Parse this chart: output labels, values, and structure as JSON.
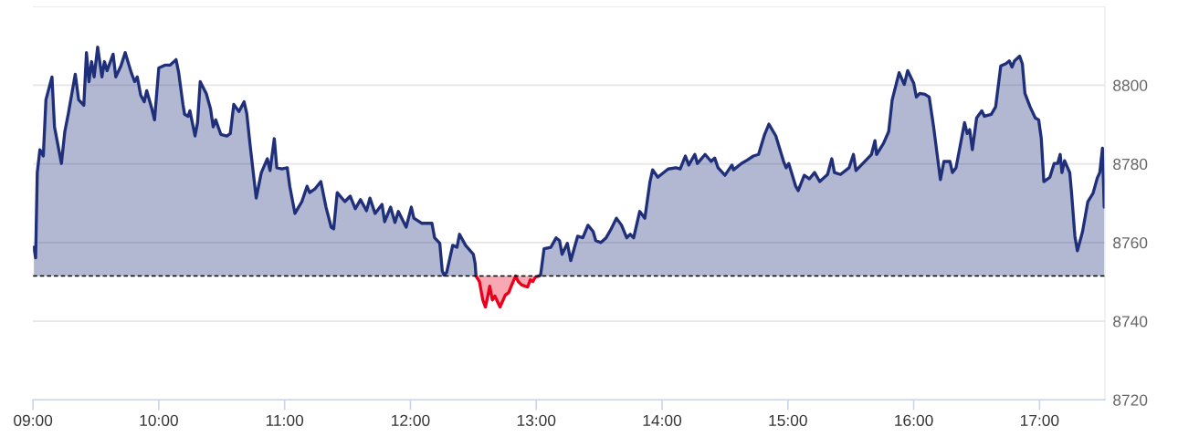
{
  "chart_data": {
    "type": "area",
    "xlim": [
      9,
      17.52
    ],
    "ylim": [
      8720,
      8820
    ],
    "xticks": [
      {
        "value": 9,
        "label": "09:00"
      },
      {
        "value": 10,
        "label": "10:00"
      },
      {
        "value": 11,
        "label": "11:00"
      },
      {
        "value": 12,
        "label": "12:00"
      },
      {
        "value": 13,
        "label": "13:00"
      },
      {
        "value": 14,
        "label": "14:00"
      },
      {
        "value": 15,
        "label": "15:00"
      },
      {
        "value": 16,
        "label": "16:00"
      },
      {
        "value": 17,
        "label": "17:00"
      }
    ],
    "yticks": [
      8720,
      8740,
      8760,
      8780,
      8800,
      {
        "value": 8820,
        "label": null
      }
    ],
    "grid": "y",
    "ref_lines": [
      {
        "axis": "y",
        "value": 8751.5,
        "color": "#000000",
        "line_style": "dashed"
      }
    ],
    "series": [
      {
        "color": "#1f2f7a",
        "x": [
          9.007,
          9.021,
          9.034,
          9.055,
          9.082,
          9.103,
          9.151,
          9.171,
          9.226,
          9.253,
          9.281,
          9.336,
          9.363,
          9.404,
          9.425,
          9.445,
          9.466,
          9.486,
          9.514,
          9.548,
          9.568,
          9.589,
          9.637,
          9.658,
          9.699,
          9.733,
          9.781,
          9.808,
          9.829,
          9.856,
          9.884,
          9.904,
          9.945,
          9.966,
          10.0,
          10.048,
          10.089,
          10.137,
          10.158,
          10.192,
          10.205,
          10.233,
          10.247,
          10.288,
          10.308,
          10.329,
          10.377,
          10.411,
          10.432,
          10.452,
          10.493,
          10.541,
          10.568,
          10.596,
          10.637,
          10.678,
          10.699,
          10.726,
          10.774,
          10.815,
          10.863,
          10.884,
          10.918,
          10.938,
          10.979,
          11.021,
          11.041,
          11.082,
          11.137,
          11.178,
          11.199,
          11.24,
          11.288,
          11.329,
          11.37,
          11.39,
          11.418,
          11.479,
          11.521,
          11.562,
          11.603,
          11.651,
          11.678,
          11.719,
          11.774,
          11.795,
          11.842,
          11.877,
          11.904,
          11.966,
          12.007,
          12.027,
          12.089,
          12.144,
          12.171,
          12.192,
          12.233,
          12.253,
          12.267,
          12.288,
          12.336,
          12.37,
          12.39,
          12.438,
          12.5,
          12.514,
          12.521
        ],
        "values": [
          8758.8,
          8756.1,
          8777.8,
          8783.6,
          8782.0,
          8796.3,
          8802.1,
          8789.4,
          8780.1,
          8788.2,
          8792.8,
          8802.8,
          8796.3,
          8794.9,
          8808.3,
          8800.9,
          8806.0,
          8802.1,
          8809.7,
          8802.1,
          8806.0,
          8803.7,
          8807.9,
          8802.1,
          8804.9,
          8808.3,
          8803.2,
          8800.9,
          8802.1,
          8797.5,
          8795.8,
          8798.6,
          8794.0,
          8791.2,
          8804.4,
          8805.1,
          8805.1,
          8806.5,
          8803.2,
          8795.1,
          8792.6,
          8792.1,
          8793.5,
          8787.1,
          8790.5,
          8800.9,
          8797.9,
          8794.0,
          8789.4,
          8791.2,
          8787.5,
          8787.1,
          8787.7,
          8795.1,
          8793.3,
          8795.8,
          8792.8,
          8784.7,
          8771.3,
          8777.8,
          8781.3,
          8778.3,
          8786.4,
          8779.0,
          8778.7,
          8779.0,
          8774.3,
          8767.4,
          8770.4,
          8774.3,
          8772.7,
          8773.6,
          8775.5,
          8769.0,
          8763.9,
          8763.5,
          8772.7,
          8770.4,
          8771.8,
          8768.6,
          8770.9,
          8768.1,
          8771.3,
          8767.4,
          8769.7,
          8765.3,
          8769.0,
          8765.1,
          8767.9,
          8763.9,
          8769.0,
          8766.2,
          8764.9,
          8764.9,
          8764.9,
          8761.2,
          8759.8,
          8752.8,
          8751.7,
          8752.4,
          8759.3,
          8758.8,
          8762.1,
          8759.3,
          8757.0,
          8754.7,
          8751.5
        ]
      },
      {
        "color": "#e8001c",
        "x": [
          12.521,
          12.527,
          12.548,
          12.575,
          12.596,
          12.616,
          12.63,
          12.651,
          12.671,
          12.712,
          12.753,
          12.781,
          12.801,
          12.836,
          12.856,
          12.884,
          12.932,
          12.952,
          12.973,
          12.993,
          13.021
        ],
        "values": [
          8751.5,
          8751.2,
          8750.1,
          8745.4,
          8743.6,
          8746.6,
          8748.9,
          8745.4,
          8746.4,
          8743.6,
          8746.6,
          8747.3,
          8748.9,
          8751.5,
          8750.1,
          8749.2,
          8748.7,
          8750.5,
          8750.1,
          8751.2,
          8751.5
        ]
      },
      {
        "color": "#1f2f7a",
        "x": [
          13.021,
          13.034,
          13.062,
          13.116,
          13.158,
          13.185,
          13.205,
          13.247,
          13.274,
          13.329,
          13.37,
          13.411,
          13.452,
          13.473,
          13.514,
          13.555,
          13.596,
          13.637,
          13.678,
          13.719,
          13.747,
          13.774,
          13.822,
          13.863,
          13.904,
          13.925,
          13.966,
          14.048,
          14.11,
          14.144,
          14.185,
          14.212,
          14.26,
          14.281,
          14.342,
          14.39,
          14.418,
          14.445,
          14.5,
          14.555,
          14.568,
          14.63,
          14.678,
          14.726,
          14.767,
          14.815,
          14.849,
          14.904,
          14.966,
          14.986,
          15.007,
          15.062,
          15.082,
          15.13,
          15.171,
          15.212,
          15.253,
          15.315,
          15.349,
          15.37,
          15.418,
          15.486,
          15.521,
          15.541,
          15.61,
          15.664,
          15.692,
          15.705,
          15.76,
          15.801,
          15.829,
          15.884,
          15.925,
          15.952,
          16.0,
          16.021,
          16.048,
          16.089,
          16.123,
          16.158,
          16.212,
          16.24,
          16.288,
          16.308,
          16.336,
          16.384,
          16.404,
          16.425,
          16.445,
          16.466,
          16.5,
          16.541,
          16.562,
          16.616,
          16.651,
          16.692,
          16.733,
          16.76,
          16.781,
          16.801,
          16.842,
          16.863,
          16.884,
          16.925,
          16.966,
          16.993,
          17.014,
          17.034,
          17.082,
          17.116,
          17.144,
          17.164,
          17.178,
          17.199,
          17.24,
          17.253,
          17.281,
          17.301,
          17.342,
          17.384,
          17.425,
          17.459,
          17.479,
          17.5,
          17.514
        ],
        "values": [
          8751.5,
          8751.7,
          8758.4,
          8758.8,
          8761.2,
          8760.5,
          8757.0,
          8759.8,
          8755.4,
          8761.6,
          8761.2,
          8764.4,
          8762.8,
          8760.5,
          8760.0,
          8761.2,
          8763.5,
          8766.2,
          8764.4,
          8761.2,
          8762.1,
          8761.2,
          8767.9,
          8766.2,
          8775.5,
          8778.5,
          8776.6,
          8778.7,
          8779.0,
          8778.7,
          8782.0,
          8779.7,
          8782.4,
          8780.1,
          8782.4,
          8780.6,
          8781.5,
          8779.0,
          8777.1,
          8779.7,
          8778.5,
          8780.1,
          8781.0,
          8782.0,
          8782.4,
          8787.5,
          8790.1,
          8787.1,
          8780.6,
          8779.0,
          8780.1,
          8774.3,
          8773.2,
          8777.1,
          8776.2,
          8777.8,
          8775.5,
          8777.3,
          8781.3,
          8777.8,
          8777.3,
          8779.0,
          8782.4,
          8778.3,
          8780.6,
          8782.4,
          8785.9,
          8782.4,
          8785.2,
          8788.2,
          8796.3,
          8803.2,
          8800.2,
          8803.7,
          8800.5,
          8797.0,
          8797.9,
          8797.7,
          8797.0,
          8789.4,
          8776.0,
          8780.6,
          8780.6,
          8777.8,
          8779.0,
          8787.1,
          8790.5,
          8787.7,
          8788.7,
          8783.6,
          8791.7,
          8793.5,
          8792.1,
          8792.6,
          8794.5,
          8804.9,
          8805.5,
          8806.2,
          8804.6,
          8806.2,
          8807.4,
          8805.5,
          8797.9,
          8794.5,
          8791.7,
          8791.2,
          8786.4,
          8775.5,
          8776.6,
          8780.1,
          8780.1,
          8782.4,
          8777.8,
          8780.8,
          8777.8,
          8773.2,
          8761.6,
          8757.9,
          8762.8,
          8770.4,
          8772.5,
          8776.4,
          8777.8,
          8784.0,
          8769.0
        ]
      }
    ]
  }
}
